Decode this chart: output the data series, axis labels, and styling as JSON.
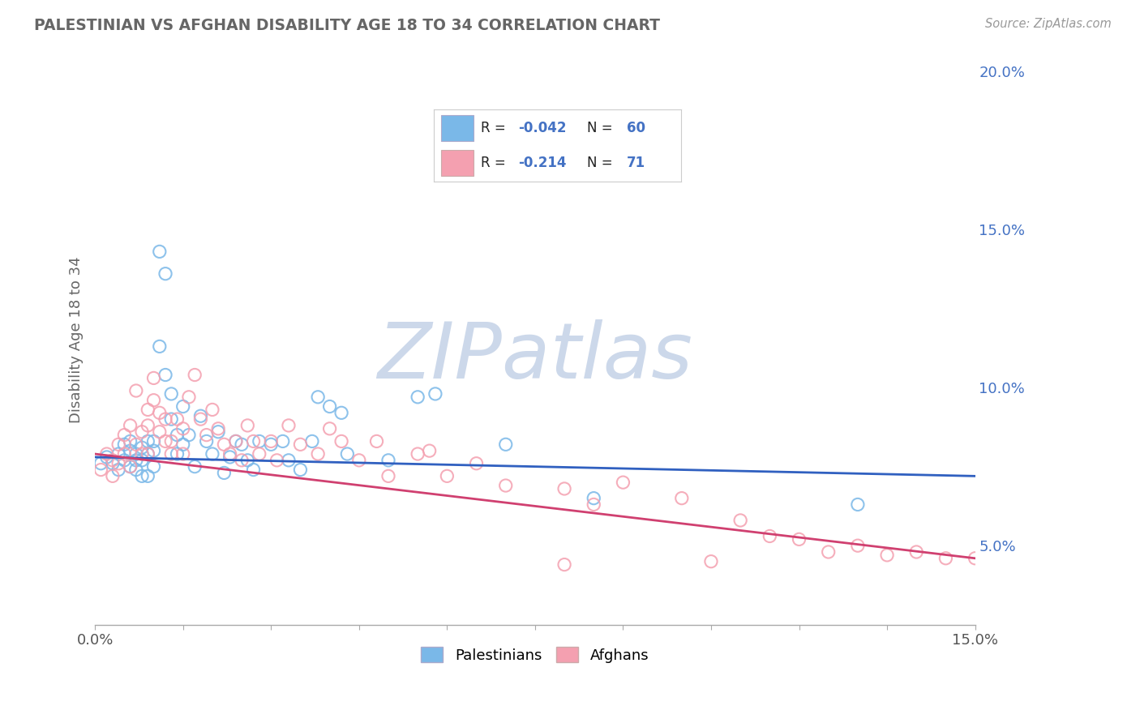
{
  "title": "PALESTINIAN VS AFGHAN DISABILITY AGE 18 TO 34 CORRELATION CHART",
  "source": "Source: ZipAtlas.com",
  "ylabel": "Disability Age 18 to 34",
  "xlim": [
    0.0,
    0.15
  ],
  "ylim": [
    0.025,
    0.205
  ],
  "blue_color": "#7ab8e8",
  "pink_color": "#f4a0b0",
  "blue_line_color": "#3060c0",
  "pink_line_color": "#d04070",
  "watermark": "ZIPatlas",
  "watermark_color": "#ccd8ea",
  "blue_scatter_x": [
    0.001,
    0.002,
    0.003,
    0.004,
    0.004,
    0.005,
    0.005,
    0.006,
    0.006,
    0.006,
    0.007,
    0.007,
    0.007,
    0.008,
    0.008,
    0.008,
    0.009,
    0.009,
    0.009,
    0.01,
    0.01,
    0.01,
    0.011,
    0.011,
    0.012,
    0.012,
    0.013,
    0.013,
    0.014,
    0.014,
    0.015,
    0.015,
    0.016,
    0.017,
    0.018,
    0.019,
    0.02,
    0.021,
    0.022,
    0.023,
    0.024,
    0.025,
    0.026,
    0.027,
    0.028,
    0.03,
    0.032,
    0.033,
    0.035,
    0.037,
    0.038,
    0.04,
    0.042,
    0.043,
    0.05,
    0.055,
    0.058,
    0.07,
    0.085,
    0.13
  ],
  "blue_scatter_y": [
    0.076,
    0.078,
    0.076,
    0.079,
    0.074,
    0.082,
    0.077,
    0.08,
    0.075,
    0.083,
    0.077,
    0.079,
    0.074,
    0.081,
    0.077,
    0.072,
    0.083,
    0.079,
    0.072,
    0.08,
    0.075,
    0.083,
    0.113,
    0.143,
    0.136,
    0.104,
    0.098,
    0.09,
    0.085,
    0.079,
    0.082,
    0.094,
    0.085,
    0.075,
    0.091,
    0.083,
    0.079,
    0.086,
    0.073,
    0.078,
    0.083,
    0.082,
    0.077,
    0.074,
    0.083,
    0.082,
    0.083,
    0.077,
    0.074,
    0.083,
    0.097,
    0.094,
    0.092,
    0.079,
    0.077,
    0.097,
    0.098,
    0.082,
    0.065,
    0.063
  ],
  "pink_scatter_x": [
    0.001,
    0.002,
    0.003,
    0.003,
    0.004,
    0.004,
    0.005,
    0.005,
    0.006,
    0.006,
    0.007,
    0.007,
    0.008,
    0.008,
    0.009,
    0.009,
    0.009,
    0.01,
    0.01,
    0.011,
    0.011,
    0.012,
    0.012,
    0.013,
    0.013,
    0.014,
    0.015,
    0.015,
    0.016,
    0.017,
    0.018,
    0.019,
    0.02,
    0.021,
    0.022,
    0.023,
    0.024,
    0.025,
    0.026,
    0.027,
    0.028,
    0.03,
    0.031,
    0.033,
    0.035,
    0.038,
    0.04,
    0.042,
    0.045,
    0.048,
    0.05,
    0.055,
    0.057,
    0.06,
    0.065,
    0.07,
    0.08,
    0.085,
    0.09,
    0.1,
    0.105,
    0.11,
    0.115,
    0.12,
    0.125,
    0.13,
    0.135,
    0.14,
    0.145,
    0.15,
    0.08
  ],
  "pink_scatter_y": [
    0.074,
    0.079,
    0.072,
    0.077,
    0.076,
    0.082,
    0.085,
    0.079,
    0.088,
    0.075,
    0.099,
    0.082,
    0.079,
    0.086,
    0.093,
    0.088,
    0.079,
    0.103,
    0.096,
    0.092,
    0.086,
    0.09,
    0.083,
    0.079,
    0.083,
    0.09,
    0.087,
    0.079,
    0.097,
    0.104,
    0.09,
    0.085,
    0.093,
    0.087,
    0.082,
    0.079,
    0.083,
    0.077,
    0.088,
    0.083,
    0.079,
    0.083,
    0.077,
    0.088,
    0.082,
    0.079,
    0.087,
    0.083,
    0.077,
    0.083,
    0.072,
    0.079,
    0.08,
    0.072,
    0.076,
    0.069,
    0.068,
    0.063,
    0.07,
    0.065,
    0.045,
    0.058,
    0.053,
    0.052,
    0.048,
    0.05,
    0.047,
    0.048,
    0.046,
    0.046,
    0.044
  ],
  "blue_trend_y_start": 0.078,
  "blue_trend_y_end": 0.072,
  "pink_trend_y_start": 0.079,
  "pink_trend_y_end": 0.046,
  "background_color": "#ffffff",
  "grid_color": "#cccccc",
  "title_color": "#666666",
  "axis_label_color": "#666666",
  "tick_color_right": "#4472c4",
  "legend_R1": "-0.042",
  "legend_N1": "60",
  "legend_R2": "-0.214",
  "legend_N2": "71"
}
